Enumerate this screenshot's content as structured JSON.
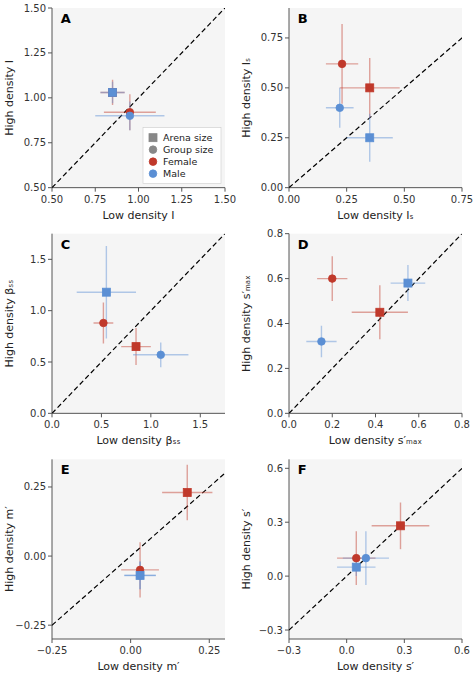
{
  "chart_data": [
    {
      "type": "scatter",
      "title": "A",
      "xlabel": "Low density I",
      "ylabel": "High density I",
      "xlim": [
        0.5,
        1.5
      ],
      "ylim": [
        0.5,
        1.5
      ],
      "xticks": [
        {
          "value": 0.5,
          "label": "0.50"
        },
        0.75,
        {
          "value": 1.0,
          "label": "1.00"
        },
        1.25,
        {
          "value": 1.5,
          "label": "1.50"
        }
      ],
      "yticks": [
        {
          "value": 0.5,
          "label": "0.50"
        },
        0.75,
        {
          "value": 1.0,
          "label": "1.00"
        },
        1.25,
        {
          "value": 1.5,
          "label": "1.50"
        }
      ],
      "diagonal": [
        0.5,
        1.5
      ],
      "legend": "lower right",
      "legend_entries": [
        {
          "label": "Arena size",
          "marker": "square"
        },
        {
          "label": "Group size",
          "marker": "circle"
        },
        {
          "label": "Female",
          "color": "#c0392b"
        },
        {
          "label": "Male",
          "color": "#5b8fd4"
        }
      ],
      "series": [
        {
          "color": "#c0392b",
          "marker": "square",
          "x": [
            0.85
          ],
          "values": [
            1.03
          ],
          "xerr": [
            0.07
          ],
          "yerr": [
            0.07
          ]
        },
        {
          "color": "#c0392b",
          "marker": "circle",
          "x": [
            0.95
          ],
          "values": [
            0.92
          ],
          "xerr": [
            0.15
          ],
          "yerr": [
            0.1
          ]
        },
        {
          "color": "#5b8fd4",
          "marker": "square",
          "x": [
            0.85
          ],
          "values": [
            1.03
          ],
          "xerr": [
            0.07
          ],
          "yerr": [
            0.06
          ]
        },
        {
          "color": "#5b8fd4",
          "marker": "circle",
          "x": [
            0.95
          ],
          "values": [
            0.9
          ],
          "xerr": [
            0.2
          ],
          "yerr": [
            0.08
          ]
        }
      ]
    },
    {
      "type": "scatter",
      "title": "B",
      "xlabel": "Low density Iₛ",
      "ylabel": "High density Iₛ",
      "xlim": [
        0.0,
        0.75
      ],
      "ylim": [
        0.0,
        0.9
      ],
      "xticks": [
        {
          "value": 0.0,
          "label": "0.00"
        },
        0.25,
        {
          "value": 0.5,
          "label": "0.50"
        },
        0.75
      ],
      "yticks": [
        {
          "value": 0.0,
          "label": "0.00"
        },
        0.25,
        {
          "value": 0.5,
          "label": "0.50"
        },
        0.75
      ],
      "diagonal": [
        0.0,
        0.9
      ],
      "series": [
        {
          "color": "#c0392b",
          "marker": "square",
          "x": [
            0.35
          ],
          "values": [
            0.5
          ],
          "xerr": [
            0.13
          ],
          "yerr": [
            0.15
          ]
        },
        {
          "color": "#c0392b",
          "marker": "circle",
          "x": [
            0.23
          ],
          "values": [
            0.62
          ],
          "xerr": [
            0.07
          ],
          "yerr": [
            0.2
          ]
        },
        {
          "color": "#5b8fd4",
          "marker": "square",
          "x": [
            0.35
          ],
          "values": [
            0.25
          ],
          "xerr": [
            0.1
          ],
          "yerr": [
            0.12
          ]
        },
        {
          "color": "#5b8fd4",
          "marker": "circle",
          "x": [
            0.22
          ],
          "values": [
            0.4
          ],
          "xerr": [
            0.06
          ],
          "yerr": [
            0.1
          ]
        }
      ]
    },
    {
      "type": "scatter",
      "title": "C",
      "xlabel": "Low density βₛₛ",
      "ylabel": "High density βₛₛ",
      "xlim": [
        0.0,
        1.75
      ],
      "ylim": [
        0.0,
        1.75
      ],
      "xticks": [
        {
          "value": 0.0,
          "label": "0.0"
        },
        0.5,
        {
          "value": 1.0,
          "label": "1.0"
        },
        1.5
      ],
      "yticks": [
        {
          "value": 0.0,
          "label": "0.0"
        },
        0.5,
        {
          "value": 1.0,
          "label": "1.0"
        },
        1.5
      ],
      "diagonal": [
        0.0,
        1.75
      ],
      "series": [
        {
          "color": "#c0392b",
          "marker": "square",
          "x": [
            0.85
          ],
          "values": [
            0.65
          ],
          "xerr": [
            0.15
          ],
          "yerr": [
            0.18
          ]
        },
        {
          "color": "#c0392b",
          "marker": "circle",
          "x": [
            0.52
          ],
          "values": [
            0.88
          ],
          "xerr": [
            0.1
          ],
          "yerr": [
            0.2
          ]
        },
        {
          "color": "#5b8fd4",
          "marker": "square",
          "x": [
            0.55
          ],
          "values": [
            1.18
          ],
          "xerr": [
            0.3
          ],
          "yerr": [
            0.45
          ]
        },
        {
          "color": "#5b8fd4",
          "marker": "circle",
          "x": [
            1.1
          ],
          "values": [
            0.57
          ],
          "xerr": [
            0.28
          ],
          "yerr": [
            0.12
          ]
        }
      ]
    },
    {
      "type": "scatter",
      "title": "D",
      "xlabel": "Low density s′ₘₐₓ",
      "ylabel": "High density s′ₘₐₓ",
      "xlim": [
        0.0,
        0.8
      ],
      "ylim": [
        0.0,
        0.8
      ],
      "xticks": [
        {
          "value": 0.0,
          "label": "0.0"
        },
        0.2,
        0.4,
        0.6,
        0.8
      ],
      "yticks": [
        {
          "value": 0.0,
          "label": "0.0"
        },
        0.2,
        0.4,
        0.6,
        0.8
      ],
      "diagonal": [
        0.0,
        0.8
      ],
      "series": [
        {
          "color": "#c0392b",
          "marker": "square",
          "x": [
            0.42
          ],
          "values": [
            0.45
          ],
          "xerr": [
            0.13
          ],
          "yerr": [
            0.12
          ]
        },
        {
          "color": "#c0392b",
          "marker": "circle",
          "x": [
            0.2
          ],
          "values": [
            0.6
          ],
          "xerr": [
            0.07
          ],
          "yerr": [
            0.1
          ]
        },
        {
          "color": "#5b8fd4",
          "marker": "square",
          "x": [
            0.55
          ],
          "values": [
            0.58
          ],
          "xerr": [
            0.08
          ],
          "yerr": [
            0.08
          ]
        },
        {
          "color": "#5b8fd4",
          "marker": "circle",
          "x": [
            0.15
          ],
          "values": [
            0.32
          ],
          "xerr": [
            0.07
          ],
          "yerr": [
            0.07
          ]
        }
      ]
    },
    {
      "type": "scatter",
      "title": "E",
      "xlabel": "Low density m′",
      "ylabel": "High density m′",
      "xlim": [
        -0.25,
        0.3
      ],
      "ylim": [
        -0.3,
        0.35
      ],
      "xticks": [
        {
          "value": -0.25,
          "label": "−0.25"
        },
        {
          "value": 0.0,
          "label": "0.00"
        },
        0.25
      ],
      "yticks": [
        {
          "value": -0.25,
          "label": "−0.25"
        },
        {
          "value": 0.0,
          "label": "0.00"
        },
        0.25
      ],
      "diagonal": [
        -0.25,
        0.3
      ],
      "series": [
        {
          "color": "#c0392b",
          "marker": "square",
          "x": [
            0.18
          ],
          "values": [
            0.23
          ],
          "xerr": [
            0.08
          ],
          "yerr": [
            0.1
          ]
        },
        {
          "color": "#c0392b",
          "marker": "circle",
          "x": [
            0.03
          ],
          "values": [
            -0.05
          ],
          "xerr": [
            0.06
          ],
          "yerr": [
            0.1
          ]
        },
        {
          "color": "#5b8fd4",
          "marker": "square",
          "x": [
            0.03
          ],
          "values": [
            -0.07
          ],
          "xerr": [
            0.05
          ],
          "yerr": [
            0.05
          ]
        },
        {
          "color": "#5b8fd4",
          "marker": "circle",
          "x": [
            0.03
          ],
          "values": [
            -0.07
          ],
          "xerr": [
            0.05
          ],
          "yerr": [
            0.05
          ]
        }
      ]
    },
    {
      "type": "scatter",
      "title": "F",
      "xlabel": "Low density s′",
      "ylabel": "High density s′",
      "xlim": [
        -0.3,
        0.6
      ],
      "ylim": [
        -0.35,
        0.65
      ],
      "xticks": [
        {
          "value": -0.3,
          "label": "−0.3"
        },
        {
          "value": 0.0,
          "label": "0.0"
        },
        0.3,
        0.6
      ],
      "yticks": [
        {
          "value": -0.3,
          "label": "−0.3"
        },
        {
          "value": 0.0,
          "label": "0.0"
        },
        0.3,
        0.6
      ],
      "diagonal": [
        -0.3,
        0.6
      ],
      "series": [
        {
          "color": "#c0392b",
          "marker": "square",
          "x": [
            0.28
          ],
          "values": [
            0.28
          ],
          "xerr": [
            0.15
          ],
          "yerr": [
            0.13
          ]
        },
        {
          "color": "#c0392b",
          "marker": "circle",
          "x": [
            0.05
          ],
          "values": [
            0.1
          ],
          "xerr": [
            0.1
          ],
          "yerr": [
            0.15
          ]
        },
        {
          "color": "#5b8fd4",
          "marker": "square",
          "x": [
            0.05
          ],
          "values": [
            0.05
          ],
          "xerr": [
            0.1
          ],
          "yerr": [
            0.05
          ]
        },
        {
          "color": "#5b8fd4",
          "marker": "circle",
          "x": [
            0.1
          ],
          "values": [
            0.1
          ],
          "xerr": [
            0.12
          ],
          "yerr": [
            0.15
          ]
        }
      ]
    }
  ]
}
